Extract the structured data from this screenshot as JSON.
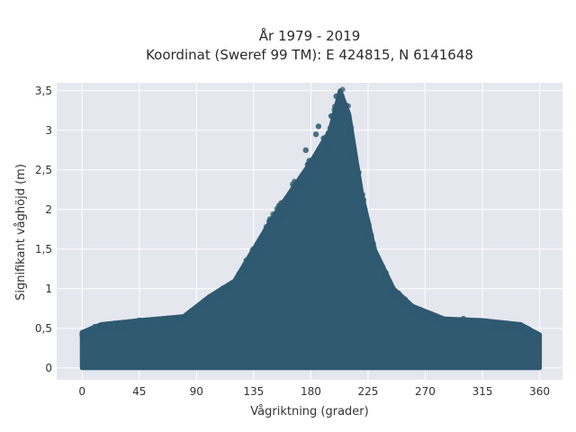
{
  "chart_data": {
    "type": "scatter",
    "title_line1": "År 1979 - 2019",
    "title_line2": "Koordinat (Sweref 99 TM): E 424815, N 6141648",
    "xlabel": "Vågriktning (grader)",
    "ylabel": "Signifikant våghöjd (m)",
    "xlim": [
      -20,
      378
    ],
    "ylim": [
      -0.15,
      3.6
    ],
    "x_ticks": [
      0,
      45,
      90,
      135,
      180,
      225,
      270,
      315,
      360
    ],
    "x_tick_labels": [
      "0",
      "45",
      "90",
      "135",
      "180",
      "225",
      "270",
      "315",
      "360"
    ],
    "y_ticks": [
      0,
      0.5,
      1,
      1.5,
      2,
      2.5,
      3,
      3.5
    ],
    "y_tick_labels": [
      "0",
      "0,5",
      "1",
      "1,5",
      "2",
      "2,5",
      "3",
      "3,5"
    ],
    "grid": true,
    "colors": {
      "marker": "#2f5a70",
      "plot_bg": "#e5e7ef",
      "grid": "#ffffff"
    },
    "envelope": [
      {
        "x": 0,
        "y": 0.45
      },
      {
        "x": 15,
        "y": 0.55
      },
      {
        "x": 45,
        "y": 0.6
      },
      {
        "x": 80,
        "y": 0.65
      },
      {
        "x": 100,
        "y": 0.9
      },
      {
        "x": 120,
        "y": 1.1
      },
      {
        "x": 135,
        "y": 1.5
      },
      {
        "x": 150,
        "y": 1.9
      },
      {
        "x": 165,
        "y": 2.25
      },
      {
        "x": 180,
        "y": 2.6
      },
      {
        "x": 195,
        "y": 3.0
      },
      {
        "x": 203,
        "y": 3.5
      },
      {
        "x": 210,
        "y": 3.2
      },
      {
        "x": 220,
        "y": 2.2
      },
      {
        "x": 230,
        "y": 1.5
      },
      {
        "x": 245,
        "y": 1.0
      },
      {
        "x": 260,
        "y": 0.78
      },
      {
        "x": 285,
        "y": 0.62
      },
      {
        "x": 315,
        "y": 0.6
      },
      {
        "x": 345,
        "y": 0.55
      },
      {
        "x": 360,
        "y": 0.42
      }
    ],
    "notable_points": [
      {
        "x": 203,
        "y": 3.47
      },
      {
        "x": 200,
        "y": 3.43
      },
      {
        "x": 199,
        "y": 3.3
      },
      {
        "x": 196,
        "y": 3.18
      },
      {
        "x": 186,
        "y": 3.05
      },
      {
        "x": 184,
        "y": 2.95
      },
      {
        "x": 190,
        "y": 2.9
      },
      {
        "x": 208,
        "y": 3.1
      },
      {
        "x": 168,
        "y": 2.22
      },
      {
        "x": 170,
        "y": 2.15
      },
      {
        "x": 176,
        "y": 2.75
      },
      {
        "x": 155,
        "y": 2.05
      },
      {
        "x": 45,
        "y": 0.6
      },
      {
        "x": 60,
        "y": 0.55
      },
      {
        "x": 85,
        "y": 0.7
      },
      {
        "x": 300,
        "y": 0.62
      },
      {
        "x": 330,
        "y": 0.55
      },
      {
        "x": 350,
        "y": 0.5
      },
      {
        "x": 10,
        "y": 0.52
      },
      {
        "x": 25,
        "y": 0.55
      }
    ]
  }
}
